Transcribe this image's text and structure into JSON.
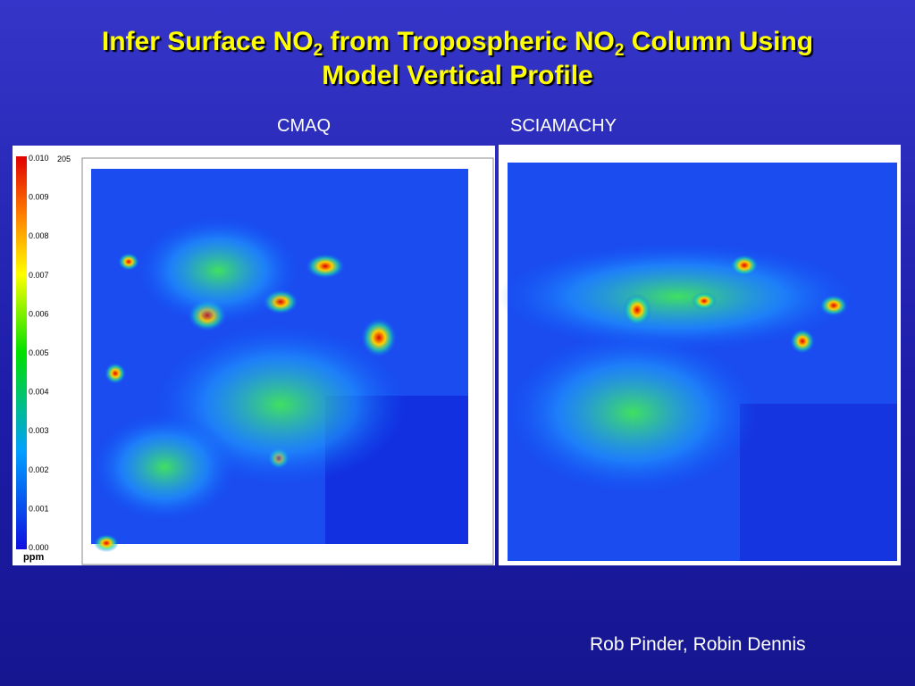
{
  "title": {
    "parts": [
      "Infer Surface NO",
      "2",
      " from Tropospheric NO",
      "2",
      " Column Using",
      "Model Vertical Profile"
    ]
  },
  "panels": [
    {
      "label": "CMAQ"
    },
    {
      "label": "SCIAMACHY"
    }
  ],
  "colorbar": {
    "ticks": [
      "0.010",
      "0.009",
      "0.008",
      "0.007",
      "0.006",
      "0.005",
      "0.004",
      "0.003",
      "0.002",
      "0.001",
      "0.000"
    ],
    "unit": "ppm",
    "note": "205"
  },
  "footer": {
    "authors": "Rob Pinder, Robin Dennis"
  }
}
